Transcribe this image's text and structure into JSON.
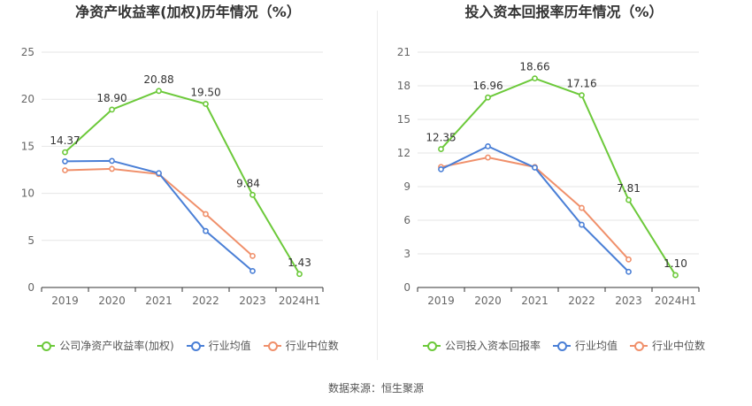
{
  "chart_data": [
    {
      "type": "line",
      "title": "净资产收益率(加权)历年情况（%）",
      "categories": [
        "2019",
        "2020",
        "2021",
        "2022",
        "2023",
        "2024H1"
      ],
      "ylim": [
        0,
        25
      ],
      "yticks": [
        0,
        5,
        10,
        15,
        20,
        25
      ],
      "series": [
        {
          "name": "公司净资产收益率(加权)",
          "color": "#6cc93a",
          "values": [
            14.37,
            18.9,
            20.88,
            19.5,
            9.84,
            1.43
          ],
          "labels": [
            "14.37",
            "18.90",
            "20.88",
            "19.50",
            "9.84",
            "1.43"
          ]
        },
        {
          "name": "行业均值",
          "color": "#4a7fd6",
          "values": [
            13.4,
            13.45,
            12.15,
            6.0,
            1.75,
            null
          ]
        },
        {
          "name": "行业中位数",
          "color": "#f0906b",
          "values": [
            12.45,
            12.6,
            12.05,
            7.8,
            3.35,
            null
          ]
        }
      ],
      "legend_position": "bottom",
      "grid": true
    },
    {
      "type": "line",
      "title": "投入资本回报率历年情况（%）",
      "categories": [
        "2019",
        "2020",
        "2021",
        "2022",
        "2023",
        "2024H1"
      ],
      "ylim": [
        0,
        21
      ],
      "yticks": [
        0,
        3,
        6,
        9,
        12,
        15,
        18,
        21
      ],
      "series": [
        {
          "name": "公司投入资本回报率",
          "color": "#6cc93a",
          "values": [
            12.35,
            16.96,
            18.66,
            17.16,
            7.81,
            1.1
          ],
          "labels": [
            "12.35",
            "16.96",
            "18.66",
            "17.16",
            "7.81",
            "1.10"
          ]
        },
        {
          "name": "行业均值",
          "color": "#4a7fd6",
          "values": [
            10.55,
            12.6,
            10.7,
            5.6,
            1.4,
            null
          ]
        },
        {
          "name": "行业中位数",
          "color": "#f0906b",
          "values": [
            10.75,
            11.6,
            10.75,
            7.1,
            2.5,
            null
          ]
        }
      ],
      "legend_position": "bottom",
      "grid": true
    }
  ],
  "footer": {
    "source": "数据来源：恒生聚源"
  }
}
